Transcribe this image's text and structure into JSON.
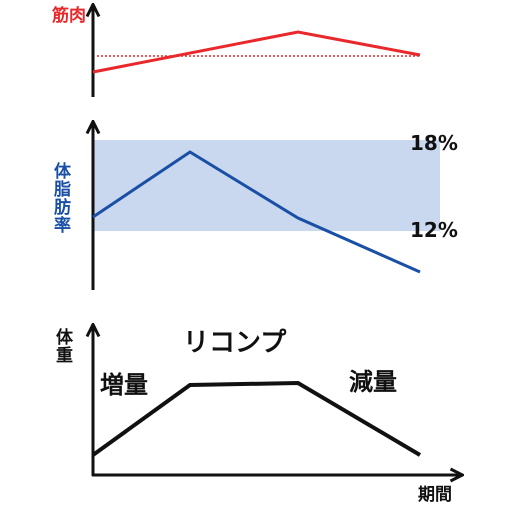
{
  "muscle": {
    "label": "筋肉"
  },
  "body_fat": {
    "label": "体脂肪率",
    "upper": "18%",
    "lower": "12%"
  },
  "weight": {
    "label": "体重",
    "phases": [
      "増量",
      "リコンプ",
      "減量"
    ]
  },
  "x_axis": {
    "label": "期間"
  }
}
